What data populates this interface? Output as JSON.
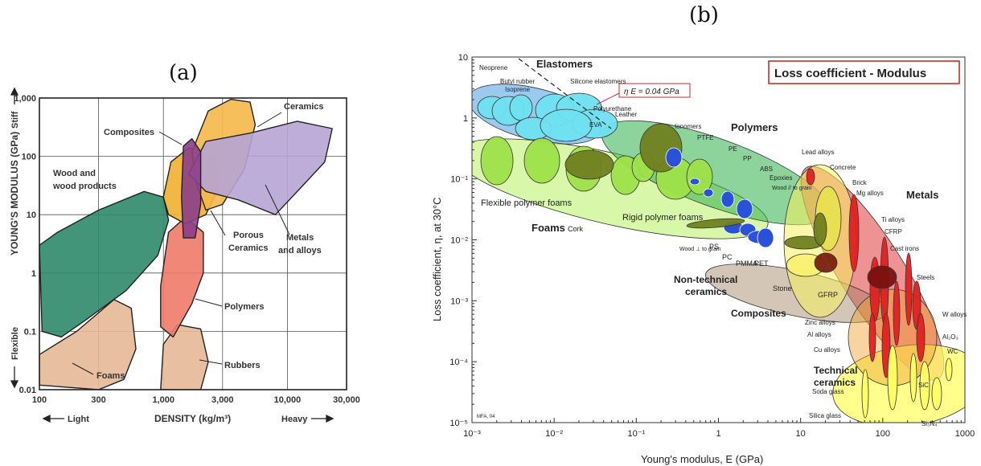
{
  "panels": {
    "a": "(a)",
    "b": "(b)"
  },
  "chart_data": [
    {
      "type": "scatter",
      "subtype": "material-property-map",
      "xlabel": "DENSITY (kg/m³)",
      "ylabel": "YOUNG'S MODULUS (GPa)",
      "x_scale": "log",
      "y_scale": "log",
      "xlim": [
        100,
        30000
      ],
      "ylim": [
        0.01,
        1000
      ],
      "grid": true,
      "x_ticks": [
        "100",
        "300",
        "1,000",
        "3,000",
        "10,000",
        "30,000"
      ],
      "y_ticks": [
        "1,000",
        "100",
        "10",
        "1",
        "0.1",
        "0.01"
      ],
      "axis_notes": {
        "x_low": "Light",
        "x_high": "Heavy",
        "y_high": "Stiff",
        "y_low": "Flexible"
      },
      "series": [
        {
          "name": "Ceramics",
          "color": "#f5b84a",
          "x": [
            1700,
            5500
          ],
          "y": [
            8,
            900
          ]
        },
        {
          "name": "Composites",
          "color": "#8b3f8a",
          "x": [
            1400,
            2000
          ],
          "y": [
            3,
            200
          ]
        },
        {
          "name": "Wood and wood products",
          "color": "#2f8a6a",
          "x": [
            100,
            1300
          ],
          "y": [
            0.08,
            25
          ]
        },
        {
          "name": "Porous Ceramics",
          "color": "#f0b030",
          "x": [
            1000,
            2800
          ],
          "y": [
            5,
            150
          ]
        },
        {
          "name": "Metals and alloys",
          "color": "#b6a4d4",
          "x": [
            1600,
            23000
          ],
          "y": [
            8,
            400
          ]
        },
        {
          "name": "Polymers",
          "color": "#ef7a68",
          "x": [
            900,
            2200
          ],
          "y": [
            0.08,
            10
          ]
        },
        {
          "name": "Foams",
          "color": "#e6b896",
          "x": [
            100,
            700
          ],
          "y": [
            0.01,
            0.4
          ]
        },
        {
          "name": "Rubbers",
          "color": "#e6b896",
          "x": [
            900,
            2300
          ],
          "y": [
            0.01,
            0.13
          ]
        }
      ]
    },
    {
      "type": "scatter",
      "subtype": "material-property-map",
      "title": "Loss coefficient - Modulus",
      "xlabel": "Young's modulus, E  (GPa)",
      "ylabel": "Loss coefficient, η, at 30°C",
      "x_scale": "log",
      "y_scale": "log",
      "xlim": [
        0.001,
        1000
      ],
      "ylim": [
        1e-05,
        10
      ],
      "grid": false,
      "x_ticks": [
        "10⁻³",
        "10⁻²",
        "10⁻¹",
        "1",
        "10",
        "100",
        "1000"
      ],
      "y_ticks": [
        "10",
        "1",
        "10⁻¹",
        "10⁻²",
        "10⁻³",
        "10⁻⁴",
        "10⁻⁵"
      ],
      "guide_line": "η E = 0.04 GPa",
      "footnote": "MFA, 04",
      "family_labels": [
        "Elastomers",
        "Polymers",
        "Foams",
        "Metals",
        "Non-technical ceramics",
        "Composites",
        "Technical ceramics"
      ],
      "material_labels": [
        "Neoprene",
        "Butyl rubber",
        "Isoprene",
        "Silicone elastomers",
        "Polyurethane",
        "EVA",
        "Leather",
        "Ionomers",
        "PTFE",
        "PE",
        "PP",
        "ABS",
        "Epoxies",
        "Wood // to grain",
        "Flexible polymer foams",
        "Cork",
        "Rigid polymer foams",
        "Wood ⊥ to grain",
        "PS",
        "PC",
        "PMMA",
        "PET",
        "Stone",
        "GFRP",
        "Lead alloys",
        "Concrete",
        "Brick",
        "Mg alloys",
        "Ti alloys",
        "CFRP",
        "Cast irons",
        "Steels",
        "Zinc alloys",
        "Al alloys",
        "Cu alloys",
        "W alloys",
        "Al₂O₃",
        "WC",
        "Soda glass",
        "SiC",
        "Silica glass",
        "Si₃N₄"
      ],
      "series": [
        {
          "name": "Elastomers",
          "color": "#6fe0f0",
          "x": [
            0.001,
            0.05
          ],
          "y": [
            0.2,
            3
          ]
        },
        {
          "name": "Foams",
          "color": "#9ee04a",
          "x": [
            0.001,
            1.5
          ],
          "y": [
            0.04,
            0.7
          ]
        },
        {
          "name": "Polymers",
          "color": "#2a52d8",
          "x": [
            0.2,
            5
          ],
          "y": [
            0.005,
            1
          ]
        },
        {
          "name": "Non-technical ceramics",
          "color": "#f0e850",
          "x": [
            5,
            50
          ],
          "y": [
            0.0008,
            0.1
          ]
        },
        {
          "name": "Composites",
          "color": "#8a6a40",
          "x": [
            5,
            300
          ],
          "y": [
            0.0006,
            0.02
          ]
        },
        {
          "name": "Metals",
          "color": "#e02020",
          "x": [
            10,
            300
          ],
          "y": [
            2e-05,
            0.1
          ]
        },
        {
          "name": "Technical ceramics",
          "color": "#ffff66",
          "x": [
            50,
            700
          ],
          "y": [
            1e-05,
            0.0002
          ]
        }
      ]
    }
  ]
}
